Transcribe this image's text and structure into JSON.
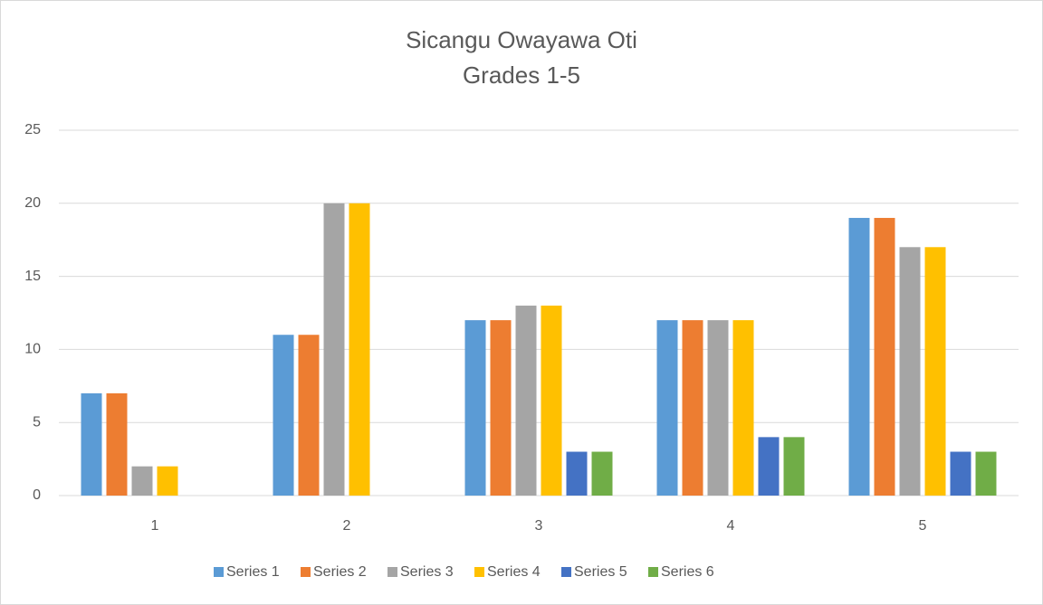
{
  "chart_data": {
    "type": "bar",
    "title": "Sicangu Owayawa Oti",
    "subtitle": "Grades 1-5",
    "categories": [
      "1",
      "2",
      "3",
      "4",
      "5"
    ],
    "series": [
      {
        "name": "Series 1",
        "color": "#5b9bd5",
        "values": [
          7,
          11,
          12,
          12,
          19
        ]
      },
      {
        "name": "Series 2",
        "color": "#ed7d31",
        "values": [
          7,
          11,
          12,
          12,
          19
        ]
      },
      {
        "name": "Series 3",
        "color": "#a5a5a5",
        "values": [
          2,
          20,
          13,
          12,
          17
        ]
      },
      {
        "name": "Series 4",
        "color": "#ffc000",
        "values": [
          2,
          20,
          13,
          12,
          17
        ]
      },
      {
        "name": "Series 5",
        "color": "#4472c4",
        "values": [
          null,
          null,
          3,
          4,
          3
        ]
      },
      {
        "name": "Series 6",
        "color": "#70ad47",
        "values": [
          null,
          null,
          3,
          4,
          3
        ]
      }
    ],
    "ylim": [
      0,
      25
    ],
    "yticks": [
      0,
      5,
      10,
      15,
      20,
      25
    ],
    "grid": true,
    "legend": "bottom"
  }
}
